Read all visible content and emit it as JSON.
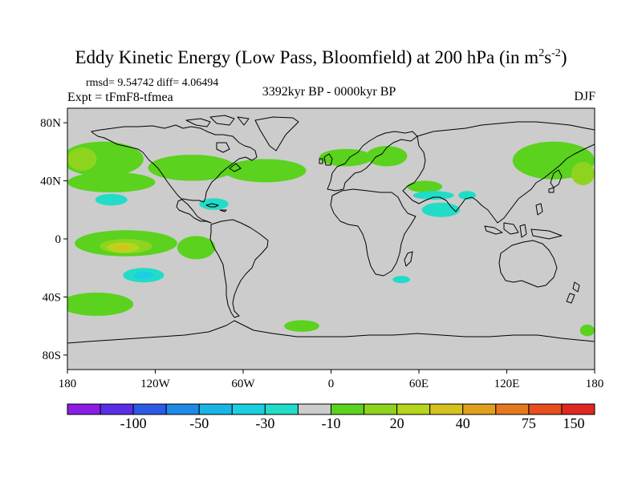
{
  "title": {
    "main": "Eddy Kinetic Energy (Low Pass, Bloomfield) at 200 hPa (in m",
    "sup1": "2",
    "mid": "s",
    "sup2": "-2",
    "end": ")"
  },
  "stats": "rmsd= 9.54742 diff= 4.06494",
  "experiment": "Expt = tFmF8-tfmea",
  "period": "3392kyr BP - 0000kyr BP",
  "season": "DJF",
  "lat_ticks": [
    {
      "label": "80N",
      "lat": 80
    },
    {
      "label": "40N",
      "lat": 40
    },
    {
      "label": "0",
      "lat": 0
    },
    {
      "label": "40S",
      "lat": -40
    },
    {
      "label": "80S",
      "lat": -80
    }
  ],
  "lon_ticks": [
    {
      "label": "180",
      "lon": -180
    },
    {
      "label": "120W",
      "lon": -120
    },
    {
      "label": "60W",
      "lon": -60
    },
    {
      "label": "0",
      "lon": 0
    },
    {
      "label": "60E",
      "lon": 60
    },
    {
      "label": "120E",
      "lon": 120
    },
    {
      "label": "180",
      "lon": 180
    }
  ],
  "colorbar": {
    "colors": [
      "#8a1ee6",
      "#5a2ee6",
      "#2a5ae6",
      "#1e8ae6",
      "#18b6e6",
      "#1ccfe0",
      "#22dcc8",
      "#cccccc",
      "#5ad21e",
      "#8ed41e",
      "#b6d61e",
      "#d6c21e",
      "#e0a01e",
      "#e6781e",
      "#e64e1e",
      "#e0261e"
    ],
    "labels": [
      {
        "text": "-100",
        "boundary": 2
      },
      {
        "text": "-50",
        "boundary": 4
      },
      {
        "text": "-30",
        "boundary": 6
      },
      {
        "text": "-10",
        "boundary": 8
      },
      {
        "text": "20",
        "boundary": 10
      },
      {
        "text": "40",
        "boundary": 12
      },
      {
        "text": "75",
        "boundary": 14
      },
      {
        "text": "150",
        "boundary": 16
      }
    ]
  },
  "anomaly_regions": [
    {
      "color": "#5ad21e",
      "lon": -156,
      "lat": 55,
      "rx": 28,
      "ry": 12
    },
    {
      "color": "#5ad21e",
      "lon": -95,
      "lat": 49,
      "rx": 30,
      "ry": 9
    },
    {
      "color": "#5ad21e",
      "lon": -45,
      "lat": 47,
      "rx": 28,
      "ry": 8
    },
    {
      "color": "#5ad21e",
      "lon": 10,
      "lat": 56,
      "rx": 18,
      "ry": 6
    },
    {
      "color": "#5ad21e",
      "lon": 38,
      "lat": 57,
      "rx": 14,
      "ry": 7
    },
    {
      "color": "#5ad21e",
      "lon": -150,
      "lat": 39,
      "rx": 30,
      "ry": 7
    },
    {
      "color": "#5ad21e",
      "lon": 152,
      "lat": 54,
      "rx": 28,
      "ry": 13
    },
    {
      "color": "#5ad21e",
      "lon": 64,
      "lat": 36,
      "rx": 12,
      "ry": 4
    },
    {
      "color": "#8ed41e",
      "lon": -170,
      "lat": 55,
      "rx": 10,
      "ry": 8
    },
    {
      "color": "#8ed41e",
      "lon": 172,
      "lat": 45,
      "rx": 8,
      "ry": 8
    },
    {
      "color": "#5ad21e",
      "lon": -140,
      "lat": -3,
      "rx": 35,
      "ry": 9
    },
    {
      "color": "#5ad21e",
      "lon": -92,
      "lat": -6,
      "rx": 13,
      "ry": 8
    },
    {
      "color": "#8ed41e",
      "lon": -140,
      "lat": -5,
      "rx": 18,
      "ry": 5
    },
    {
      "color": "#b6d61e",
      "lon": -142,
      "lat": -6,
      "rx": 11,
      "ry": 3.5
    },
    {
      "color": "#d6c21e",
      "lon": -143,
      "lat": -6,
      "rx": 5,
      "ry": 2
    },
    {
      "color": "#5ad21e",
      "lon": -160,
      "lat": -45,
      "rx": 25,
      "ry": 8
    },
    {
      "color": "#5ad21e",
      "lon": -20,
      "lat": -60,
      "rx": 12,
      "ry": 4
    },
    {
      "color": "#5ad21e",
      "lon": 175,
      "lat": -63,
      "rx": 5,
      "ry": 4
    },
    {
      "color": "#22dcc8",
      "lon": -128,
      "lat": -25,
      "rx": 14,
      "ry": 5
    },
    {
      "color": "#1ccfe0",
      "lon": -128,
      "lat": -25,
      "rx": 7,
      "ry": 2.5
    },
    {
      "color": "#22dcc8",
      "lon": -150,
      "lat": 27,
      "rx": 11,
      "ry": 4
    },
    {
      "color": "#22dcc8",
      "lon": -80,
      "lat": 24,
      "rx": 10,
      "ry": 4
    },
    {
      "color": "#22dcc8",
      "lon": 75,
      "lat": 20,
      "rx": 13,
      "ry": 5
    },
    {
      "color": "#22dcc8",
      "lon": 70,
      "lat": 30,
      "rx": 14,
      "ry": 3
    },
    {
      "color": "#22dcc8",
      "lon": 93,
      "lat": 30,
      "rx": 6,
      "ry": 3
    },
    {
      "color": "#22dcc8",
      "lon": 48,
      "lat": -28,
      "rx": 6,
      "ry": 2.5
    }
  ]
}
